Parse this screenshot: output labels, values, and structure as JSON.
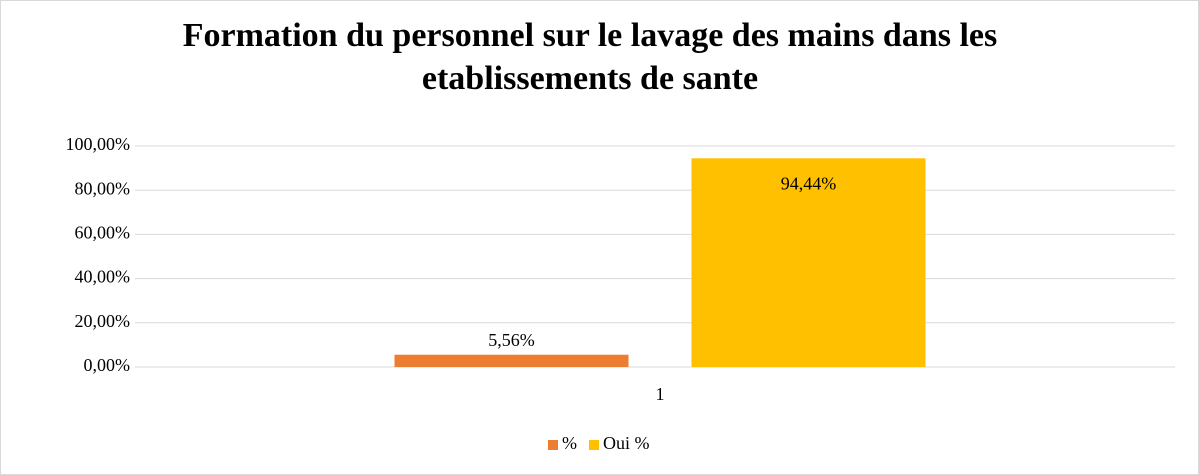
{
  "chart_data": {
    "type": "bar",
    "title": "Formation du personnel sur le lavage des mains dans les etablissements de sante",
    "categories": [
      "1"
    ],
    "series": [
      {
        "name": "%",
        "color": "#ed7d31",
        "values": [
          5.56
        ],
        "value_labels": [
          "5,56%"
        ]
      },
      {
        "name": "Oui %",
        "color": "#ffc000",
        "values": [
          94.44
        ],
        "value_labels": [
          "94,44%"
        ]
      }
    ],
    "ylim": [
      0,
      100
    ],
    "yticks": [
      {
        "value": 0,
        "label": "0,00%"
      },
      {
        "value": 20,
        "label": "20,00%"
      },
      {
        "value": 40,
        "label": "40,00%"
      },
      {
        "value": 60,
        "label": "60,00%"
      },
      {
        "value": 80,
        "label": "80,00%"
      },
      {
        "value": 100,
        "label": "100,00%"
      }
    ],
    "grid": true,
    "legend": "bottom"
  }
}
